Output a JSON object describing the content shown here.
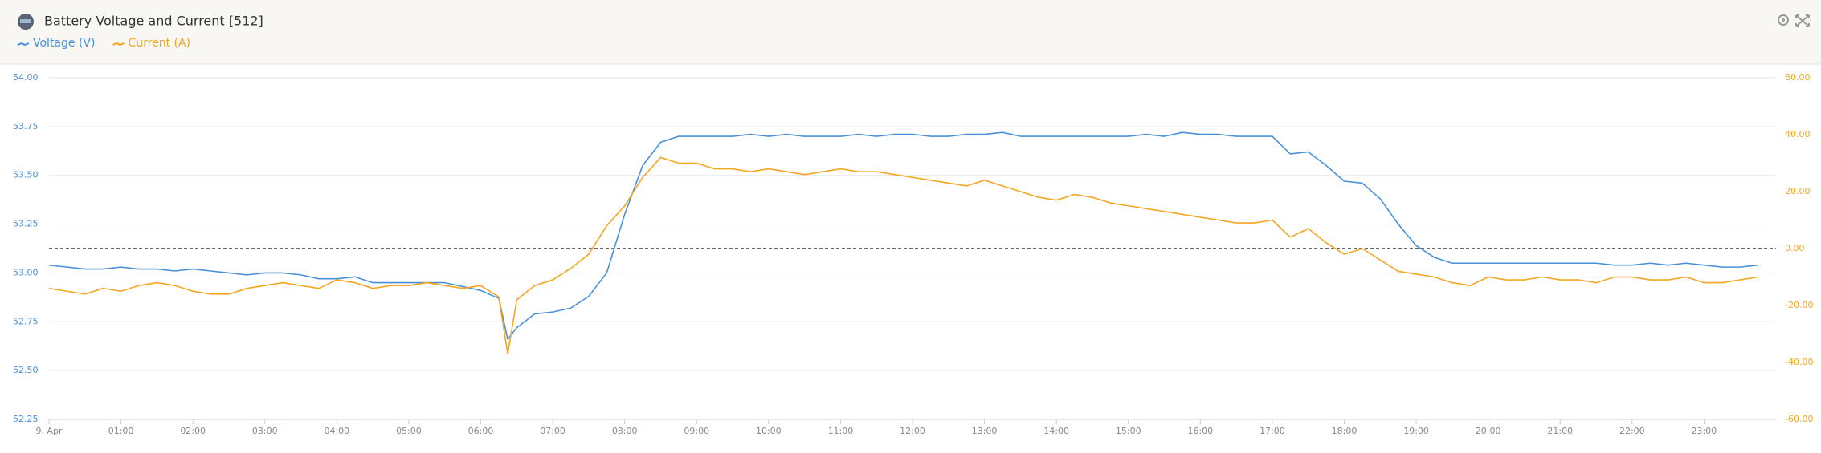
{
  "chart_data": {
    "type": "line",
    "title": "Battery Voltage and Current [512]",
    "x": [
      0,
      0.25,
      0.5,
      0.75,
      1,
      1.25,
      1.5,
      1.75,
      2,
      2.25,
      2.5,
      2.75,
      3,
      3.25,
      3.5,
      3.75,
      4,
      4.25,
      4.5,
      4.75,
      5,
      5.25,
      5.5,
      5.75,
      6,
      6.25,
      6.375,
      6.5,
      6.75,
      7,
      7.25,
      7.5,
      7.75,
      8,
      8.25,
      8.5,
      8.75,
      9,
      9.25,
      9.5,
      9.75,
      10,
      10.25,
      10.5,
      10.75,
      11,
      11.25,
      11.5,
      11.75,
      12,
      12.25,
      12.5,
      12.75,
      13,
      13.25,
      13.5,
      13.75,
      14,
      14.25,
      14.5,
      14.75,
      15,
      15.25,
      15.5,
      15.75,
      16,
      16.25,
      16.5,
      16.75,
      17,
      17.25,
      17.5,
      17.75,
      18,
      18.25,
      18.5,
      18.75,
      19,
      19.25,
      19.5,
      19.75,
      20,
      20.25,
      20.5,
      20.75,
      21,
      21.25,
      21.5,
      21.75,
      22,
      22.25,
      22.5,
      22.75,
      23,
      23.25,
      23.5,
      23.75
    ],
    "series": [
      {
        "name": "Voltage (V)",
        "color": "#4a90d9",
        "values": [
          53.04,
          53.03,
          53.02,
          53.02,
          53.03,
          53.02,
          53.02,
          53.01,
          53.02,
          53.01,
          53.0,
          52.99,
          53.0,
          53.0,
          52.99,
          52.97,
          52.97,
          52.98,
          52.95,
          52.95,
          52.95,
          52.95,
          52.95,
          52.93,
          52.91,
          52.87,
          52.66,
          52.72,
          52.79,
          52.8,
          52.82,
          52.88,
          53.0,
          53.3,
          53.55,
          53.67,
          53.7,
          53.7,
          53.7,
          53.7,
          53.71,
          53.7,
          53.71,
          53.7,
          53.7,
          53.7,
          53.71,
          53.7,
          53.71,
          53.71,
          53.7,
          53.7,
          53.71,
          53.71,
          53.72,
          53.7,
          53.7,
          53.7,
          53.7,
          53.7,
          53.7,
          53.7,
          53.71,
          53.7,
          53.72,
          53.71,
          53.71,
          53.7,
          53.7,
          53.7,
          53.61,
          53.62,
          53.55,
          53.47,
          53.46,
          53.38,
          53.25,
          53.14,
          53.08,
          53.05,
          53.05,
          53.05,
          53.05,
          53.05,
          53.05,
          53.05,
          53.05,
          53.05,
          53.04,
          53.04,
          53.05,
          53.04,
          53.05,
          53.04,
          53.03,
          53.03,
          53.04
        ]
      },
      {
        "name": "Current (A)",
        "color": "#f5a623",
        "axis": "y2",
        "values": [
          -14,
          -15,
          -16,
          -14,
          -15,
          -13,
          -12,
          -13,
          -15,
          -16,
          -16,
          -14,
          -13,
          -12,
          -13,
          -14,
          -11,
          -12,
          -14,
          -13,
          -13,
          -12,
          -13,
          -14,
          -13,
          -17,
          -37,
          -18,
          -13,
          -11,
          -7,
          -2,
          8,
          15,
          25,
          32,
          30,
          30,
          28,
          28,
          27,
          28,
          27,
          26,
          27,
          28,
          27,
          27,
          26,
          25,
          24,
          23,
          22,
          24,
          22,
          20,
          18,
          17,
          19,
          18,
          16,
          15,
          14,
          13,
          12,
          11,
          10,
          9,
          9,
          10,
          4,
          7,
          2,
          -2,
          0,
          -4,
          -8,
          -9,
          -10,
          -12,
          -13,
          -10,
          -11,
          -11,
          -10,
          -11,
          -11,
          -12,
          -10,
          -10,
          -11,
          -11,
          -10,
          -12,
          -12,
          -11,
          -10
        ]
      }
    ],
    "xlim": [
      0,
      24
    ],
    "xticks": [
      {
        "value": 0,
        "label": "9. Apr"
      },
      {
        "value": 1,
        "label": "01:00"
      },
      {
        "value": 2,
        "label": "02:00"
      },
      {
        "value": 3,
        "label": "03:00"
      },
      {
        "value": 4,
        "label": "04:00"
      },
      {
        "value": 5,
        "label": "05:00"
      },
      {
        "value": 6,
        "label": "06:00"
      },
      {
        "value": 7,
        "label": "07:00"
      },
      {
        "value": 8,
        "label": "08:00"
      },
      {
        "value": 9,
        "label": "09:00"
      },
      {
        "value": 10,
        "label": "10:00"
      },
      {
        "value": 11,
        "label": "11:00"
      },
      {
        "value": 12,
        "label": "12:00"
      },
      {
        "value": 13,
        "label": "13:00"
      },
      {
        "value": 14,
        "label": "14:00"
      },
      {
        "value": 15,
        "label": "15:00"
      },
      {
        "value": 16,
        "label": "16:00"
      },
      {
        "value": 17,
        "label": "17:00"
      },
      {
        "value": 18,
        "label": "18:00"
      },
      {
        "value": 19,
        "label": "19:00"
      },
      {
        "value": 20,
        "label": "20:00"
      },
      {
        "value": 21,
        "label": "21:00"
      },
      {
        "value": 22,
        "label": "22:00"
      },
      {
        "value": 23,
        "label": "23:00"
      }
    ],
    "ylim": [
      52.25,
      54.0
    ],
    "yticks": [
      {
        "value": 52.25,
        "label": "52.25"
      },
      {
        "value": 52.5,
        "label": "52.50"
      },
      {
        "value": 52.75,
        "label": "52.75"
      },
      {
        "value": 53.0,
        "label": "53.00"
      },
      {
        "value": 53.25,
        "label": "53.25"
      },
      {
        "value": 53.5,
        "label": "53.50"
      },
      {
        "value": 53.75,
        "label": "53.75"
      },
      {
        "value": 54.0,
        "label": "54.00"
      }
    ],
    "y2lim": [
      -60,
      60
    ],
    "y2ticks": [
      {
        "value": -60,
        "label": "-60.00"
      },
      {
        "value": -40,
        "label": "-40.00"
      },
      {
        "value": -20,
        "label": "-20.00"
      },
      {
        "value": 0,
        "label": "0.00"
      },
      {
        "value": 20,
        "label": "20.00"
      },
      {
        "value": 40,
        "label": "40.00"
      },
      {
        "value": 60,
        "label": "60.00"
      }
    ],
    "grid": true
  }
}
